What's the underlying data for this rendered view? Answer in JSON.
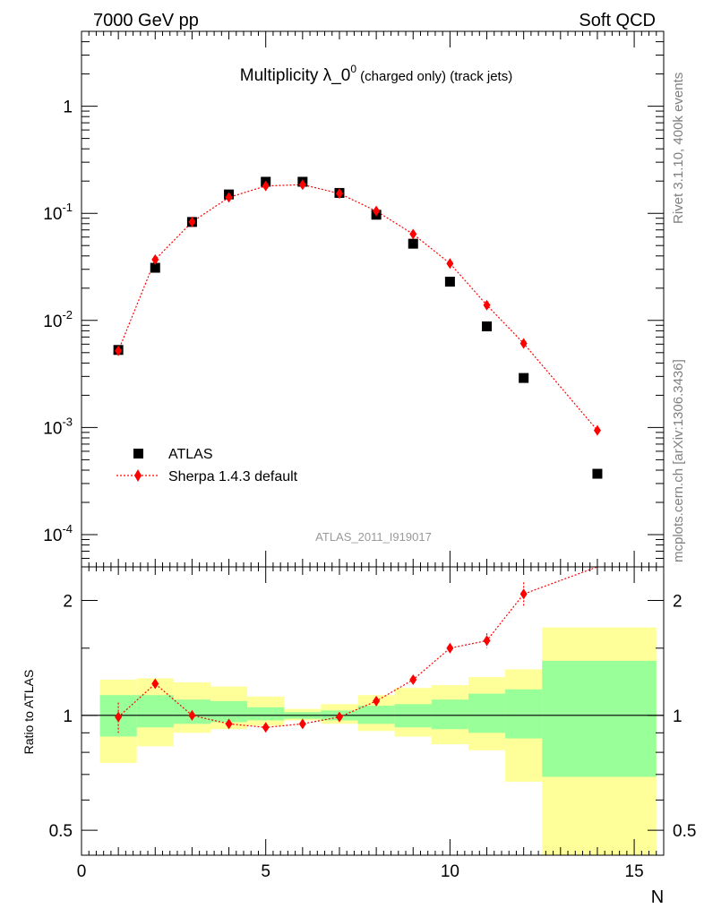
{
  "header": {
    "left": "7000 GeV pp",
    "right": "Soft QCD"
  },
  "title": {
    "main": "Multiplicity λ_0",
    "sup": "0",
    "sub": " (charged only) (track jets)"
  },
  "watermark": "ATLAS_2011_I919017",
  "side_text": {
    "top": "Rivet 3.1.10,  400k events",
    "bottom": "mcplots.cern.ch [arXiv:1306.3436]"
  },
  "legend_position": "lower-left",
  "colors": {
    "data": "#000000",
    "mc": "#ff0000",
    "band_inner": "#99ff99",
    "band_outer": "#ffff99"
  },
  "chart_data": [
    {
      "type": "scatter",
      "name": "main",
      "yscale": "log",
      "ylim": [
        5e-05,
        5
      ],
      "xlim": [
        0,
        15.8
      ],
      "grid": false,
      "y_ticks": [
        {
          "base": "10",
          "exp": "-4",
          "value": 0.0001
        },
        {
          "base": "10",
          "exp": "-3",
          "value": 0.001
        },
        {
          "base": "10",
          "exp": "-2",
          "value": 0.01
        },
        {
          "base": "10",
          "exp": "-1",
          "value": 0.1
        },
        {
          "base": "1",
          "exp": "",
          "value": 1
        }
      ],
      "series": [
        {
          "name": "ATLAS",
          "marker": "square",
          "x": [
            1,
            2,
            3,
            4,
            5,
            6,
            7,
            8,
            9,
            10,
            11,
            12,
            14
          ],
          "y": [
            0.0053,
            0.031,
            0.083,
            0.15,
            0.197,
            0.197,
            0.155,
            0.097,
            0.052,
            0.023,
            0.0088,
            0.0029,
            0.00037
          ]
        },
        {
          "name": "Sherpa 1.4.3 default",
          "marker": "diamond",
          "x": [
            1,
            2,
            3,
            4,
            5,
            6,
            7,
            8,
            9,
            10,
            11,
            12,
            14
          ],
          "y": [
            0.0052,
            0.037,
            0.083,
            0.141,
            0.18,
            0.185,
            0.153,
            0.105,
            0.064,
            0.034,
            0.0139,
            0.0061,
            0.00094
          ]
        }
      ]
    },
    {
      "type": "scatter",
      "name": "ratio",
      "ylabel": "Ratio to ATLAS",
      "xlabel": "N",
      "yscale": "log",
      "ylim": [
        0.43,
        2.45
      ],
      "xlim": [
        0,
        15.8
      ],
      "x_ticks": [
        "0",
        "5",
        "10",
        "15"
      ],
      "y_ticks": [
        "0.5",
        "1",
        "2"
      ],
      "bands": [
        {
          "x_from": 0.5,
          "x_to": 1.5,
          "inner": [
            0.88,
            1.13
          ],
          "outer": [
            0.75,
            1.24
          ]
        },
        {
          "x_from": 1.5,
          "x_to": 2.5,
          "inner": [
            0.93,
            1.13
          ],
          "outer": [
            0.83,
            1.25
          ]
        },
        {
          "x_from": 2.5,
          "x_to": 3.5,
          "inner": [
            0.95,
            1.1
          ],
          "outer": [
            0.9,
            1.22
          ]
        },
        {
          "x_from": 3.5,
          "x_to": 4.5,
          "inner": [
            0.96,
            1.09
          ],
          "outer": [
            0.92,
            1.19
          ]
        },
        {
          "x_from": 4.5,
          "x_to": 5.5,
          "inner": [
            0.97,
            1.05
          ],
          "outer": [
            0.94,
            1.12
          ]
        },
        {
          "x_from": 5.5,
          "x_to": 6.5,
          "inner": [
            0.98,
            1.02
          ],
          "outer": [
            0.97,
            1.04
          ]
        },
        {
          "x_from": 6.5,
          "x_to": 7.5,
          "inner": [
            0.97,
            1.03
          ],
          "outer": [
            0.95,
            1.07
          ]
        },
        {
          "x_from": 7.5,
          "x_to": 8.5,
          "inner": [
            0.95,
            1.06
          ],
          "outer": [
            0.91,
            1.13
          ]
        },
        {
          "x_from": 8.5,
          "x_to": 9.5,
          "inner": [
            0.93,
            1.07
          ],
          "outer": [
            0.88,
            1.18
          ]
        },
        {
          "x_from": 9.5,
          "x_to": 10.5,
          "inner": [
            0.92,
            1.1
          ],
          "outer": [
            0.84,
            1.2
          ]
        },
        {
          "x_from": 10.5,
          "x_to": 11.5,
          "inner": [
            0.9,
            1.14
          ],
          "outer": [
            0.81,
            1.26
          ]
        },
        {
          "x_from": 11.5,
          "x_to": 12.5,
          "inner": [
            0.87,
            1.17
          ],
          "outer": [
            0.67,
            1.32
          ]
        },
        {
          "x_from": 12.5,
          "x_to": 15.6,
          "inner": [
            0.69,
            1.39
          ],
          "outer": [
            0.4,
            1.7
          ]
        }
      ],
      "series": [
        {
          "name": "Sherpa 1.4.3 default",
          "x": [
            1,
            2,
            3,
            4,
            5,
            6,
            7,
            8,
            9,
            10,
            11,
            12,
            14
          ],
          "y": [
            0.99,
            1.21,
            1.0,
            0.95,
            0.93,
            0.95,
            0.99,
            1.09,
            1.24,
            1.5,
            1.57,
            2.08,
            2.6
          ],
          "err": [
            0.09,
            0.03,
            0.01,
            0.01,
            0.01,
            0.01,
            0.01,
            0.01,
            0.02,
            0.04,
            0.07,
            0.15,
            0.2
          ]
        }
      ],
      "reference_line": 1
    }
  ]
}
